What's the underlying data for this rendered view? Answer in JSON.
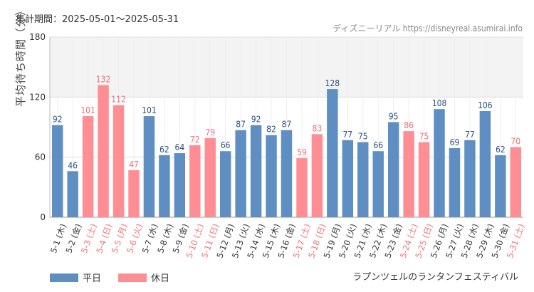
{
  "header": {
    "period": "集計期間：2025-05-01～2025-05-31",
    "source": "ディズニーリアル https://disneyreal.asumirai.info"
  },
  "colors": {
    "weekday": "#5f8fc2",
    "holiday": "#ff8e94",
    "holiday_label": "#f07178",
    "band": "#f3f3f3"
  },
  "chart_data": {
    "type": "bar",
    "title": "ラプンツェルのランタンフェスティバル",
    "ylabel": "平均待ち時間（分）",
    "xlabel": "",
    "ylim": [
      0,
      180
    ],
    "yticks": [
      0,
      60,
      120,
      180
    ],
    "shaded_band": [
      120,
      180
    ],
    "categories": [
      "5-1 (木)",
      "5-2 (金)",
      "5-3 (土)",
      "5-4 (日)",
      "5-5 (月)",
      "5-6 (火)",
      "5-7 (水)",
      "5-8 (木)",
      "5-9 (金)",
      "5-10 (土)",
      "5-11 (日)",
      "5-12 (月)",
      "5-13 (火)",
      "5-14 (水)",
      "5-15 (木)",
      "5-16 (金)",
      "5-17 (土)",
      "5-18 (日)",
      "5-19 (月)",
      "5-20 (火)",
      "5-21 (水)",
      "5-22 (木)",
      "5-23 (金)",
      "5-24 (土)",
      "5-25 (日)",
      "5-26 (月)",
      "5-27 (火)",
      "5-28 (水)",
      "5-29 (木)",
      "5-30 (金)",
      "5-31 (土)"
    ],
    "values": [
      92,
      46,
      101,
      132,
      112,
      47,
      101,
      62,
      64,
      72,
      79,
      66,
      87,
      92,
      82,
      87,
      59,
      83,
      128,
      77,
      75,
      66,
      95,
      86,
      75,
      108,
      69,
      77,
      106,
      62,
      70
    ],
    "is_holiday": [
      false,
      false,
      true,
      true,
      true,
      true,
      false,
      false,
      false,
      true,
      true,
      false,
      false,
      false,
      false,
      false,
      true,
      true,
      false,
      false,
      false,
      false,
      false,
      true,
      true,
      false,
      false,
      false,
      false,
      false,
      true
    ],
    "legend": [
      {
        "name": "平日",
        "color": "#5f8fc2"
      },
      {
        "name": "休日",
        "color": "#ff8e94"
      }
    ],
    "legend_position": "bottom-left"
  }
}
